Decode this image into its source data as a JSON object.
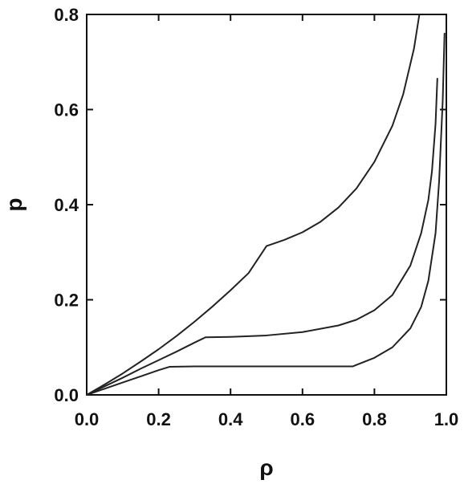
{
  "chart_data": {
    "type": "line",
    "title": "",
    "xlabel": "ρ",
    "ylabel": "p",
    "xlim": [
      0.0,
      1.0
    ],
    "ylim": [
      0.0,
      0.8
    ],
    "x_ticks": [
      "0.0",
      "0.2",
      "0.4",
      "0.6",
      "0.8",
      "1.0"
    ],
    "y_ticks": [
      "0.0",
      "0.2",
      "0.4",
      "0.6",
      "0.8"
    ],
    "grid": false,
    "legend": "none",
    "line_color": "#222222",
    "series": [
      {
        "points": [
          [
            0.0,
            0.0
          ],
          [
            0.05,
            0.022
          ],
          [
            0.1,
            0.045
          ],
          [
            0.15,
            0.07
          ],
          [
            0.2,
            0.096
          ],
          [
            0.25,
            0.124
          ],
          [
            0.3,
            0.154
          ],
          [
            0.35,
            0.186
          ],
          [
            0.4,
            0.22
          ],
          [
            0.45,
            0.256
          ],
          [
            0.5,
            0.313
          ],
          [
            0.55,
            0.326
          ],
          [
            0.6,
            0.342
          ],
          [
            0.65,
            0.364
          ],
          [
            0.7,
            0.394
          ],
          [
            0.75,
            0.434
          ],
          [
            0.8,
            0.49
          ],
          [
            0.85,
            0.566
          ],
          [
            0.88,
            0.632
          ],
          [
            0.91,
            0.728
          ],
          [
            0.925,
            0.8
          ]
        ]
      },
      {
        "points": [
          [
            0.0,
            0.0
          ],
          [
            0.05,
            0.018
          ],
          [
            0.1,
            0.036
          ],
          [
            0.15,
            0.055
          ],
          [
            0.2,
            0.073
          ],
          [
            0.25,
            0.091
          ],
          [
            0.3,
            0.11
          ],
          [
            0.33,
            0.121
          ],
          [
            0.4,
            0.122
          ],
          [
            0.5,
            0.125
          ],
          [
            0.6,
            0.132
          ],
          [
            0.7,
            0.146
          ],
          [
            0.75,
            0.158
          ],
          [
            0.8,
            0.178
          ],
          [
            0.85,
            0.21
          ],
          [
            0.9,
            0.272
          ],
          [
            0.93,
            0.34
          ],
          [
            0.95,
            0.41
          ],
          [
            0.96,
            0.47
          ],
          [
            0.97,
            0.57
          ],
          [
            0.975,
            0.665
          ]
        ]
      },
      {
        "points": [
          [
            0.0,
            0.0
          ],
          [
            0.05,
            0.013
          ],
          [
            0.1,
            0.026
          ],
          [
            0.15,
            0.039
          ],
          [
            0.2,
            0.052
          ],
          [
            0.23,
            0.059
          ],
          [
            0.3,
            0.06
          ],
          [
            0.4,
            0.06
          ],
          [
            0.5,
            0.06
          ],
          [
            0.6,
            0.06
          ],
          [
            0.7,
            0.06
          ],
          [
            0.74,
            0.06
          ],
          [
            0.8,
            0.078
          ],
          [
            0.85,
            0.1
          ],
          [
            0.9,
            0.14
          ],
          [
            0.93,
            0.185
          ],
          [
            0.95,
            0.24
          ],
          [
            0.97,
            0.34
          ],
          [
            0.98,
            0.45
          ],
          [
            0.99,
            0.62
          ],
          [
            0.995,
            0.76
          ]
        ]
      }
    ]
  }
}
